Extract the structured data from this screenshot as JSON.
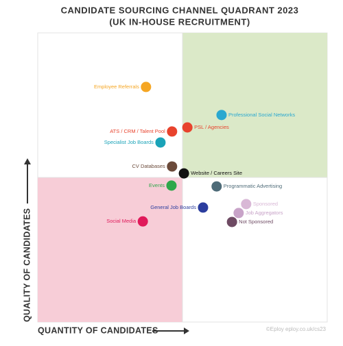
{
  "chart_data": {
    "type": "scatter",
    "title": "CANDIDATE SOURCING CHANNEL QUADRANT 2023",
    "subtitle": "(UK IN-HOUSE RECRUITMENT)",
    "x_label": "QUANTITY OF CANDIDATES",
    "y_label": "QUALITY OF CANDIDATES",
    "source": "©Eploy  eploy.co.uk/cs23",
    "xlim": [
      0,
      100
    ],
    "ylim": [
      0,
      100
    ],
    "labels": [
      "Employee Referrals",
      "Professional Social Networks",
      "PSL / Agencies",
      "ATS / CRM / Talent Pool",
      "Specialist Job Boards",
      "CV Databases",
      "Website / Careers Site",
      "Events",
      "Programmatic Advertising",
      "General Job Boards",
      "Social Media",
      "Sponsored",
      "Job Aggregators",
      "Not Sponsored"
    ],
    "x": [
      37.4,
      63.5,
      51.7,
      46.4,
      42.4,
      46.4,
      50.5,
      46.2,
      61.8,
      57.1,
      36.3,
      72.0,
      69.4,
      67.1
    ],
    "values": [
      81.3,
      71.6,
      67.3,
      65.9,
      62.1,
      53.8,
      51.4,
      47.2,
      46.9,
      39.6,
      34.8,
      40.8,
      37.7,
      34.6
    ],
    "colors": [
      "#f5a623",
      "#2aa8d0",
      "#e8432d",
      "#e8432d",
      "#1aa3b8",
      "#6b4a3a",
      "#111111",
      "#2ea84a",
      "#4e6b78",
      "#2b3d9e",
      "#e0195a",
      "#d9b8d6",
      "#c8a3c8",
      "#6e4a63"
    ],
    "quadrant_colors": [
      "#dbe9c8",
      "#f7cdd7"
    ]
  }
}
